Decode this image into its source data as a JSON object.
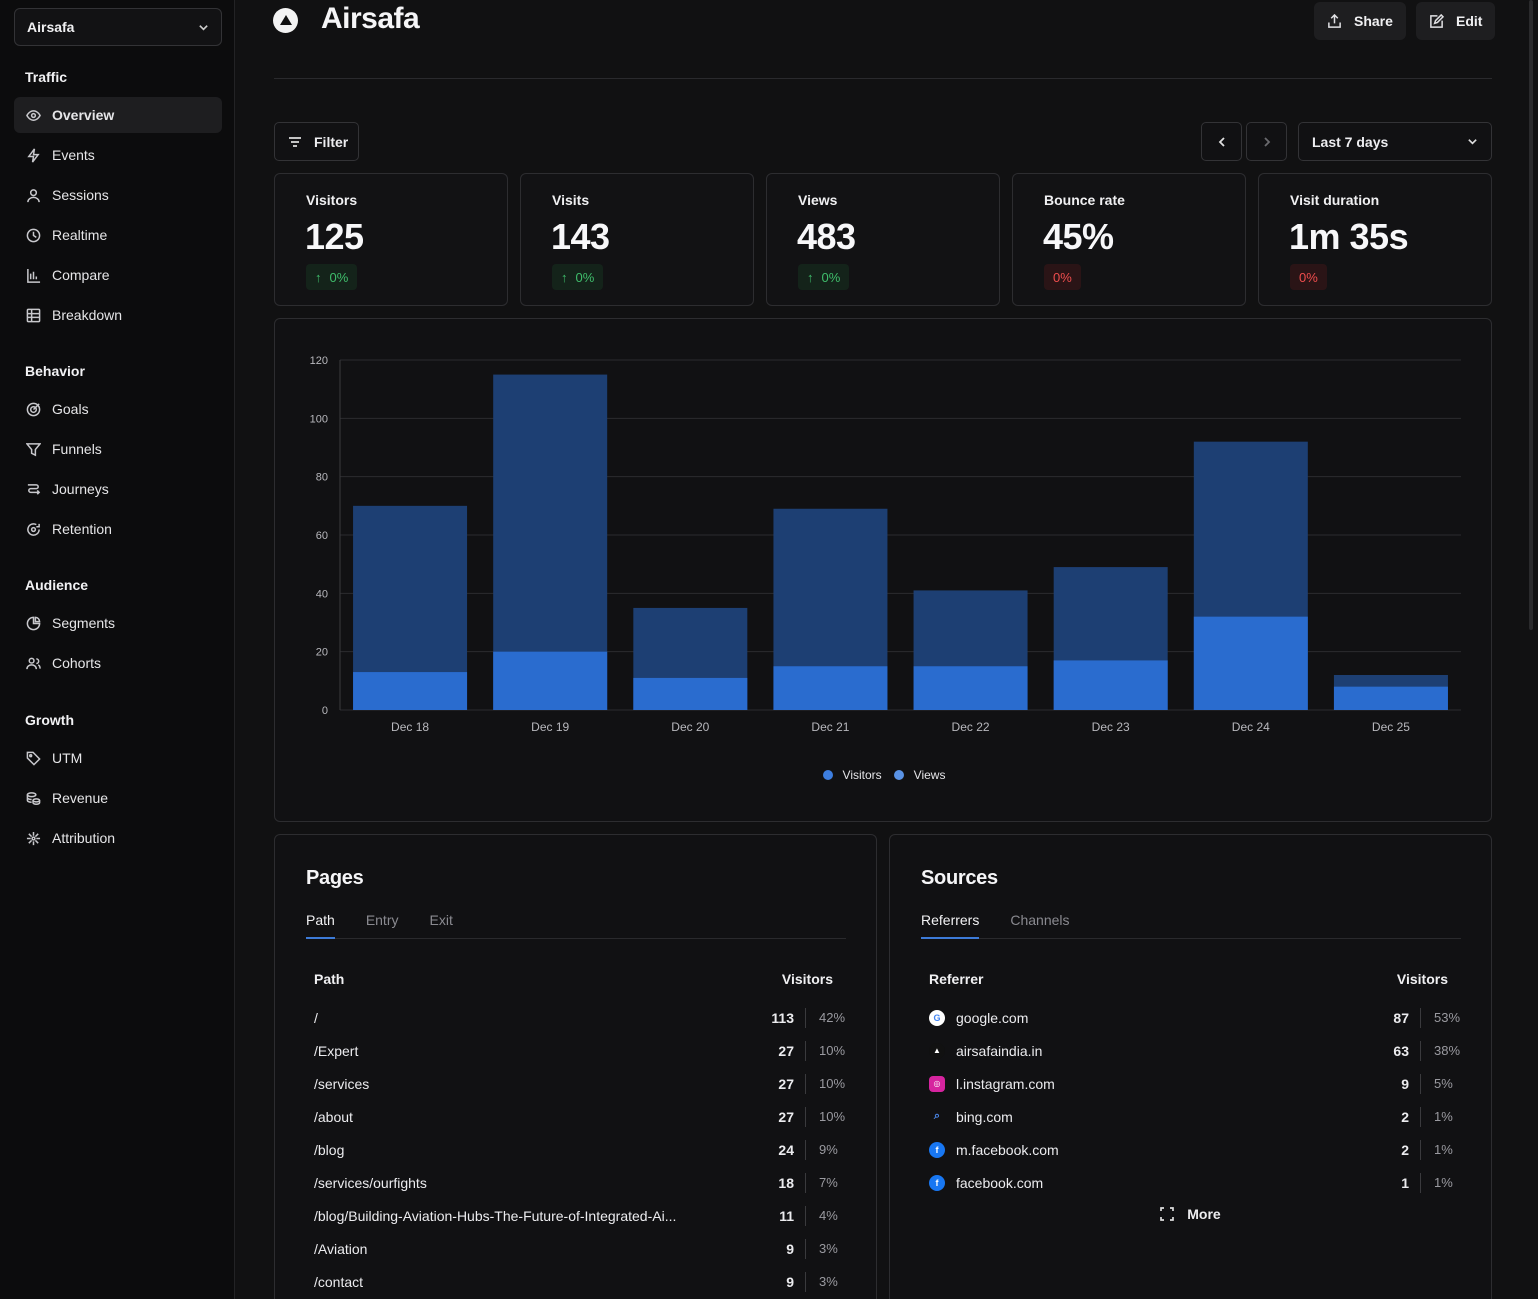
{
  "site": {
    "name": "Airsafa"
  },
  "sidebar": {
    "groups": [
      {
        "heading": "Traffic",
        "items": [
          {
            "label": "Overview",
            "icon": "eye-icon",
            "active": true
          },
          {
            "label": "Events",
            "icon": "lightning-icon"
          },
          {
            "label": "Sessions",
            "icon": "user-icon"
          },
          {
            "label": "Realtime",
            "icon": "clock-icon"
          },
          {
            "label": "Compare",
            "icon": "bar-compare-icon"
          },
          {
            "label": "Breakdown",
            "icon": "grid-icon"
          }
        ]
      },
      {
        "heading": "Behavior",
        "items": [
          {
            "label": "Goals",
            "icon": "target-icon"
          },
          {
            "label": "Funnels",
            "icon": "funnel-icon"
          },
          {
            "label": "Journeys",
            "icon": "route-icon"
          },
          {
            "label": "Retention",
            "icon": "retention-icon"
          }
        ]
      },
      {
        "heading": "Audience",
        "items": [
          {
            "label": "Segments",
            "icon": "pie-icon"
          },
          {
            "label": "Cohorts",
            "icon": "users-icon"
          }
        ]
      },
      {
        "heading": "Growth",
        "items": [
          {
            "label": "UTM",
            "icon": "tag-icon"
          },
          {
            "label": "Revenue",
            "icon": "coins-icon"
          },
          {
            "label": "Attribution",
            "icon": "network-icon"
          }
        ]
      }
    ]
  },
  "header": {
    "title": "Airsafa",
    "share_label": "Share",
    "edit_label": "Edit"
  },
  "toolbar": {
    "filter_label": "Filter",
    "date_range": "Last 7 days"
  },
  "metrics": [
    {
      "label": "Visitors",
      "value": "125",
      "change": "0%",
      "trend": "up"
    },
    {
      "label": "Visits",
      "value": "143",
      "change": "0%",
      "trend": "up"
    },
    {
      "label": "Views",
      "value": "483",
      "change": "0%",
      "trend": "up"
    },
    {
      "label": "Bounce rate",
      "value": "45%",
      "change": "0%",
      "trend": "down"
    },
    {
      "label": "Visit duration",
      "value": "1m 35s",
      "change": "0%",
      "trend": "down"
    }
  ],
  "colors": {
    "visitors": "#2a6ccf",
    "views": "#1d3f73",
    "accent": "#3d7bd8",
    "up": "#3fbd6b",
    "down": "#ef4d4d"
  },
  "chart_data": {
    "type": "bar",
    "categories": [
      "Dec 18",
      "Dec 19",
      "Dec 20",
      "Dec 21",
      "Dec 22",
      "Dec 23",
      "Dec 24",
      "Dec 25"
    ],
    "series": [
      {
        "name": "Visitors",
        "values": [
          13,
          20,
          11,
          15,
          15,
          17,
          32,
          8
        ]
      },
      {
        "name": "Views",
        "values": [
          70,
          115,
          35,
          69,
          41,
          49,
          92,
          12
        ]
      }
    ],
    "yticks": [
      0,
      20,
      40,
      60,
      80,
      100,
      120
    ],
    "ylim": [
      0,
      120
    ],
    "grid": true,
    "legend": "bottom-center"
  },
  "pages": {
    "title": "Pages",
    "tabs": [
      "Path",
      "Entry",
      "Exit"
    ],
    "col_label": "Path",
    "col_value": "Visitors",
    "rows": [
      {
        "label": "/",
        "count": "113",
        "pct": "42%"
      },
      {
        "label": "/Expert",
        "count": "27",
        "pct": "10%"
      },
      {
        "label": "/services",
        "count": "27",
        "pct": "10%"
      },
      {
        "label": "/about",
        "count": "27",
        "pct": "10%"
      },
      {
        "label": "/blog",
        "count": "24",
        "pct": "9%"
      },
      {
        "label": "/services/ourfights",
        "count": "18",
        "pct": "7%"
      },
      {
        "label": "/blog/Building-Aviation-Hubs-The-Future-of-Integrated-Ai...",
        "count": "11",
        "pct": "4%"
      },
      {
        "label": "/Aviation",
        "count": "9",
        "pct": "3%"
      },
      {
        "label": "/contact",
        "count": "9",
        "pct": "3%"
      }
    ]
  },
  "sources": {
    "title": "Sources",
    "tabs": [
      "Referrers",
      "Channels"
    ],
    "col_label": "Referrer",
    "col_value": "Visitors",
    "rows": [
      {
        "label": "google.com",
        "count": "87",
        "pct": "53%",
        "icon": "google-icon"
      },
      {
        "label": "airsafaindia.in",
        "count": "63",
        "pct": "38%",
        "icon": "airsafa-icon"
      },
      {
        "label": "l.instagram.com",
        "count": "9",
        "pct": "5%",
        "icon": "instagram-icon"
      },
      {
        "label": "bing.com",
        "count": "2",
        "pct": "1%",
        "icon": "search-icon"
      },
      {
        "label": "m.facebook.com",
        "count": "2",
        "pct": "1%",
        "icon": "facebook-icon"
      },
      {
        "label": "facebook.com",
        "count": "1",
        "pct": "1%",
        "icon": "facebook-icon"
      }
    ],
    "more_label": "More"
  }
}
